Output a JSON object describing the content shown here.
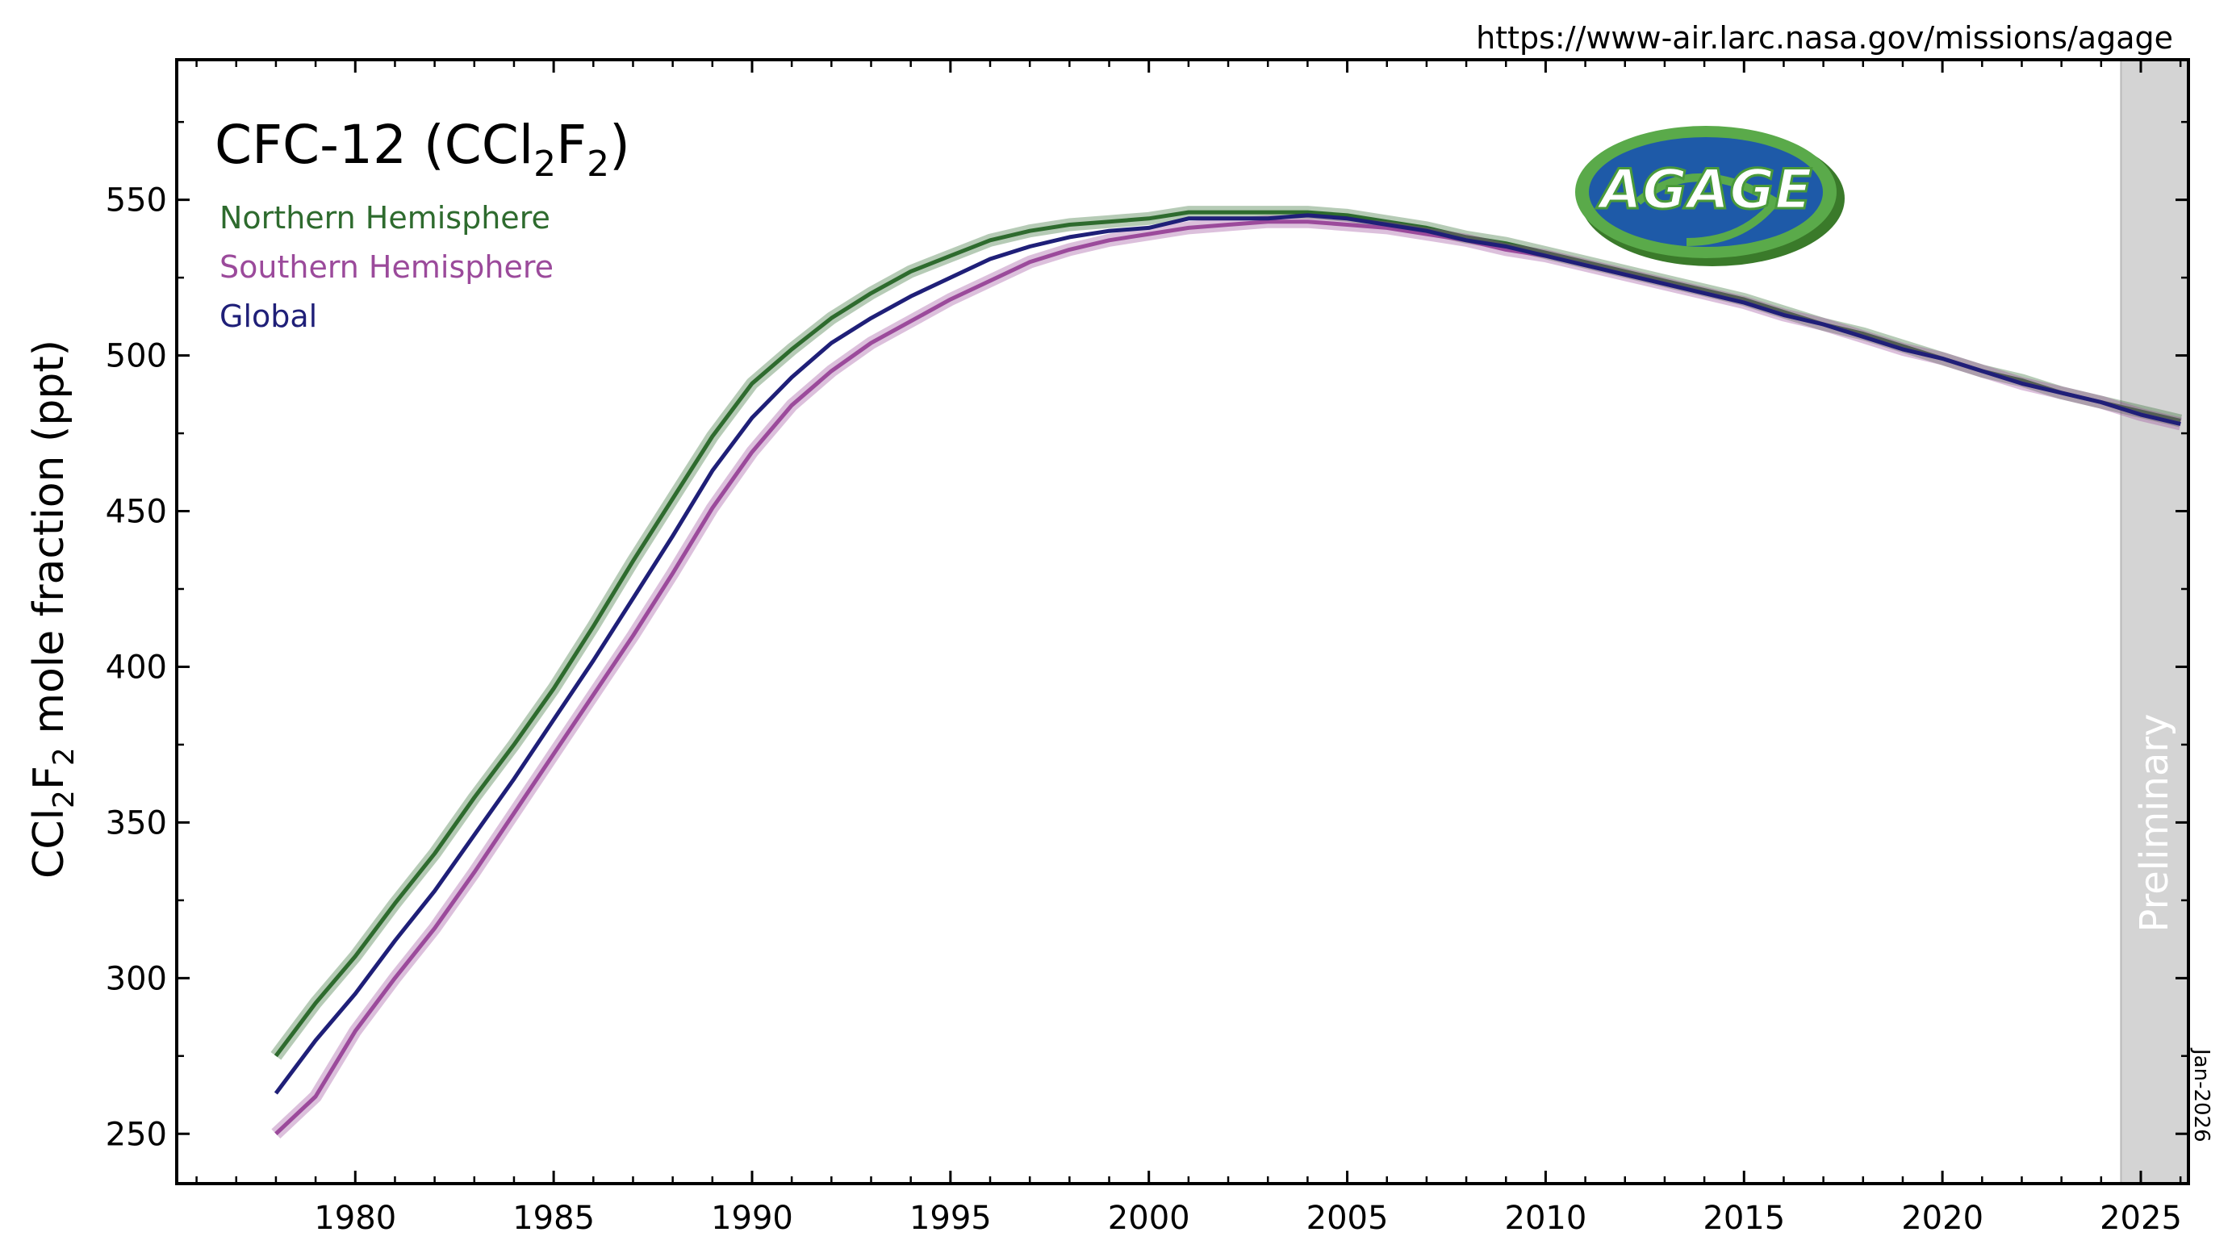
{
  "header": {
    "url": "https://www-air.larc.nasa.gov/missions/agage",
    "date_stamp": "Jan-2026"
  },
  "logo": {
    "text": "AGAGE",
    "icon": "agage-logo-icon"
  },
  "chart_data": {
    "type": "line",
    "title": {
      "prefix": "CFC-12 (CCl",
      "sub1": "2",
      "mid": "F",
      "sub2": "2",
      "suffix": ")"
    },
    "ylabel": {
      "prefix": "CCl",
      "sub1": "2",
      "mid": "F",
      "sub2": "2",
      "suffix": " mole fraction (ppt)"
    },
    "xlabel": "",
    "xlim": [
      1975.5,
      2026.2
    ],
    "ylim": [
      234,
      595
    ],
    "x_ticks": [
      1980,
      1985,
      1990,
      1995,
      2000,
      2005,
      2010,
      2015,
      2020,
      2025
    ],
    "y_ticks": [
      250,
      300,
      350,
      400,
      450,
      500,
      550
    ],
    "preliminary": {
      "label": "Preliminary",
      "start": 2024.5,
      "end": 2026.2
    },
    "legend_position": "top-left",
    "colors": {
      "nh": "#2e6b2e",
      "sh": "#9b4a9b",
      "global": "#1f1f78",
      "preliminary": "#d4d4d4"
    },
    "series": [
      {
        "name": "Northern Hemisphere",
        "color": "#2e6b2e",
        "x": [
          1978.0,
          1979.0,
          1980.0,
          1981.0,
          1982.0,
          1983.0,
          1984.0,
          1985.0,
          1986.0,
          1987.0,
          1988.0,
          1989.0,
          1990.0,
          1991.0,
          1992.0,
          1993.0,
          1994.0,
          1995.0,
          1996.0,
          1997.0,
          1998.0,
          1999.0,
          2000.0,
          2001.0,
          2002.0,
          2003.0,
          2004.0,
          2005.0,
          2006.0,
          2007.0,
          2008.0,
          2009.0,
          2010.0,
          2011.0,
          2012.0,
          2013.0,
          2014.0,
          2015.0,
          2016.0,
          2017.0,
          2018.0,
          2019.0,
          2020.0,
          2021.0,
          2022.0,
          2023.0,
          2024.0,
          2025.0,
          2026.0
        ],
        "y": [
          275,
          292,
          307,
          324,
          340,
          358,
          375,
          393,
          413,
          434,
          454,
          474,
          491,
          502,
          512,
          520,
          527,
          532,
          537,
          540,
          542,
          543,
          544,
          546,
          546,
          546,
          546,
          545,
          543,
          541,
          538,
          536,
          533,
          530,
          527,
          524,
          521,
          518,
          514,
          510,
          507,
          503,
          499,
          495,
          492,
          488,
          485,
          482,
          479
        ]
      },
      {
        "name": "Southern Hemisphere",
        "color": "#9b4a9b",
        "x": [
          1978.0,
          1979.0,
          1980.0,
          1981.0,
          1982.0,
          1983.0,
          1984.0,
          1985.0,
          1986.0,
          1987.0,
          1988.0,
          1989.0,
          1990.0,
          1991.0,
          1992.0,
          1993.0,
          1994.0,
          1995.0,
          1996.0,
          1997.0,
          1998.0,
          1999.0,
          2000.0,
          2001.0,
          2002.0,
          2003.0,
          2004.0,
          2005.0,
          2006.0,
          2007.0,
          2008.0,
          2009.0,
          2010.0,
          2011.0,
          2012.0,
          2013.0,
          2014.0,
          2015.0,
          2016.0,
          2017.0,
          2018.0,
          2019.0,
          2020.0,
          2021.0,
          2022.0,
          2023.0,
          2024.0,
          2025.0,
          2026.0
        ],
        "y": [
          250,
          262,
          283,
          300,
          316,
          334,
          353,
          372,
          391,
          410,
          430,
          451,
          469,
          484,
          495,
          504,
          511,
          518,
          524,
          530,
          534,
          537,
          539,
          541,
          542,
          543,
          543,
          542,
          541,
          539,
          537,
          534,
          532,
          529,
          526,
          523,
          520,
          517,
          513,
          510,
          506,
          502,
          499,
          495,
          491,
          488,
          485,
          481,
          478
        ]
      },
      {
        "name": "Global",
        "color": "#1f1f78",
        "x": [
          1978.0,
          1979.0,
          1980.0,
          1981.0,
          1982.0,
          1983.0,
          1984.0,
          1985.0,
          1986.0,
          1987.0,
          1988.0,
          1989.0,
          1990.0,
          1991.0,
          1992.0,
          1993.0,
          1994.0,
          1995.0,
          1996.0,
          1997.0,
          1998.0,
          1999.0,
          2000.0,
          2001.0,
          2002.0,
          2003.0,
          2004.0,
          2005.0,
          2006.0,
          2007.0,
          2008.0,
          2009.0,
          2010.0,
          2011.0,
          2012.0,
          2013.0,
          2014.0,
          2015.0,
          2016.0,
          2017.0,
          2018.0,
          2019.0,
          2020.0,
          2021.0,
          2022.0,
          2023.0,
          2024.0,
          2025.0,
          2026.0
        ],
        "y": [
          263,
          280,
          295,
          312,
          328,
          346,
          364,
          383,
          402,
          422,
          442,
          463,
          480,
          493,
          504,
          512,
          519,
          525,
          531,
          535,
          538,
          540,
          541,
          544,
          544,
          544,
          545,
          544,
          542,
          540,
          537,
          535,
          532,
          529,
          526,
          523,
          520,
          517,
          513,
          510,
          506,
          502,
          499,
          495,
          491,
          488,
          485,
          481,
          478
        ]
      }
    ]
  }
}
